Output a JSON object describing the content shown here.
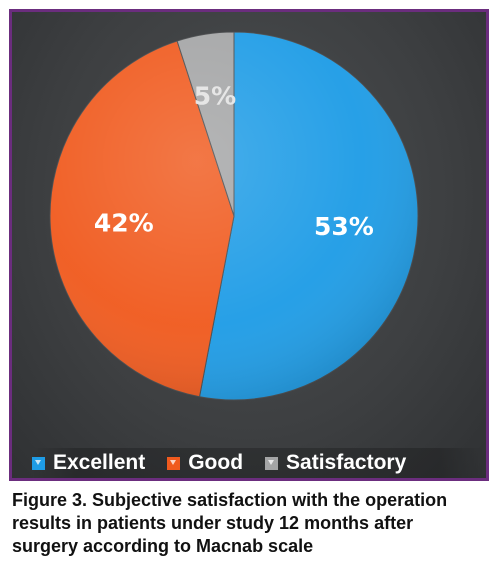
{
  "figure": {
    "caption_lines": [
      "Figure 3. Subjective satisfaction with the operation",
      "results in patients under study 12 months after",
      "surgery according to Macnab scale"
    ]
  },
  "chart_data": {
    "type": "pie",
    "categories": [
      "Excellent",
      "Good",
      "Satisfactory"
    ],
    "values": [
      53,
      42,
      5
    ],
    "data_labels": [
      "53%",
      "42%",
      "5%"
    ],
    "colors": [
      "#1e9ce6",
      "#f05a1e",
      "#a4a5a6"
    ],
    "legend_position": "bottom",
    "start_angle_deg": 0,
    "direction": "clockwise",
    "background": "#3f4143",
    "frame_color": "#6b2d7e"
  }
}
